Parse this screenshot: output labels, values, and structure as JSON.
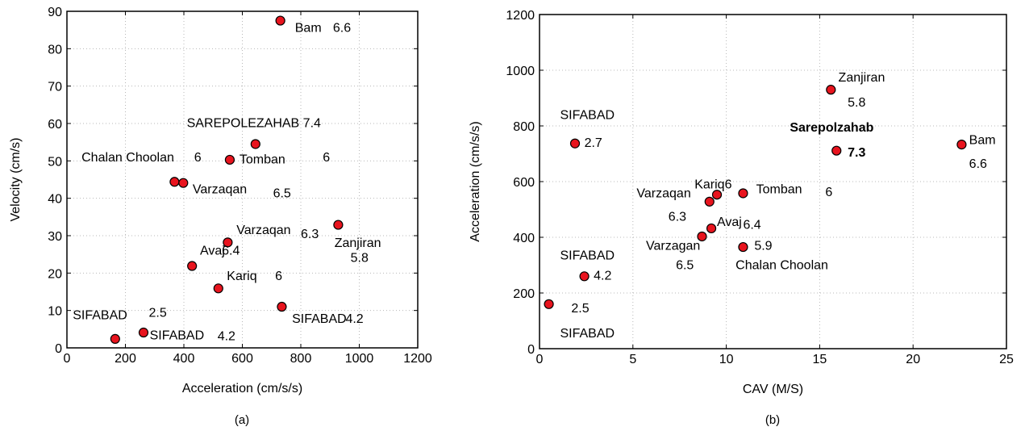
{
  "chart_data": [
    {
      "type": "scatter",
      "caption": "(a)",
      "xlabel": "Acceleration (cm/s/s)",
      "ylabel": "Velocity (cm/s)",
      "xlim": [
        0,
        1200
      ],
      "ylim": [
        0,
        90
      ],
      "xticks": [
        0,
        200,
        400,
        600,
        800,
        1000,
        1200
      ],
      "yticks": [
        0,
        10,
        20,
        30,
        40,
        50,
        60,
        70,
        80,
        90
      ],
      "grid": true,
      "marker_color": "#e8141e",
      "points": [
        {
          "x": 730,
          "y": 87.5
        },
        {
          "x": 645,
          "y": 54.5
        },
        {
          "x": 557,
          "y": 50.3
        },
        {
          "x": 368,
          "y": 44.4
        },
        {
          "x": 398,
          "y": 44.1
        },
        {
          "x": 550,
          "y": 28.2
        },
        {
          "x": 928,
          "y": 32.9
        },
        {
          "x": 428,
          "y": 21.9
        },
        {
          "x": 518,
          "y": 15.9
        },
        {
          "x": 735,
          "y": 11.0
        },
        {
          "x": 165,
          "y": 2.4
        },
        {
          "x": 262,
          "y": 4.1
        }
      ],
      "annotations": [
        {
          "text": "Bam",
          "x": 780,
          "y": 84.5
        },
        {
          "text": "6.6",
          "x": 910,
          "y": 84.5
        },
        {
          "text": "SAREPOLEZAHAB 7.4",
          "x": 410,
          "y": 59.0
        },
        {
          "text": "Chalan Choolan",
          "x": 50,
          "y": 49.9
        },
        {
          "text": "6",
          "x": 435,
          "y": 49.9
        },
        {
          "text": "Tomban",
          "x": 590,
          "y": 49.3
        },
        {
          "text": "6",
          "x": 875,
          "y": 49.9
        },
        {
          "text": "Varzaqan",
          "x": 430,
          "y": 41.3
        },
        {
          "text": "6.5",
          "x": 705,
          "y": 40.3
        },
        {
          "text": "Varzaqan",
          "x": 580,
          "y": 30.4
        },
        {
          "text": "6.3",
          "x": 800,
          "y": 29.4
        },
        {
          "text": "Zanjiran",
          "x": 915,
          "y": 27.0
        },
        {
          "text": "5.8",
          "x": 970,
          "y": 23.0
        },
        {
          "text": "Avaj",
          "x": 455,
          "y": 24.9
        },
        {
          "text": "6.4",
          "x": 530,
          "y": 24.9
        },
        {
          "text": "Kariq",
          "x": 547,
          "y": 18.1
        },
        {
          "text": "6",
          "x": 712,
          "y": 18.1
        },
        {
          "text": "SIFABAD",
          "x": 770,
          "y": 6.7
        },
        {
          "text": "4.2",
          "x": 953,
          "y": 6.7
        },
        {
          "text": "SIFABAD",
          "x": 20,
          "y": 7.7
        },
        {
          "text": "2.5",
          "x": 280,
          "y": 8.3
        },
        {
          "text": "SIFABAD",
          "x": 283,
          "y": 2.3
        },
        {
          "text": "4.2",
          "x": 515,
          "y": 2.0
        }
      ]
    },
    {
      "type": "scatter",
      "caption": "(b)",
      "xlabel": "CAV (M/S)",
      "ylabel": "Acceleration (cm/s/s)",
      "xlim": [
        0,
        25
      ],
      "ylim": [
        0,
        1200
      ],
      "xticks": [
        0,
        5,
        10,
        15,
        20,
        25
      ],
      "yticks": [
        0,
        200,
        400,
        600,
        800,
        1000,
        1200
      ],
      "grid": true,
      "marker_color": "#e8141e",
      "points": [
        {
          "x": 15.6,
          "y": 930
        },
        {
          "x": 22.6,
          "y": 733
        },
        {
          "x": 15.9,
          "y": 711
        },
        {
          "x": 1.9,
          "y": 737
        },
        {
          "x": 10.9,
          "y": 558
        },
        {
          "x": 9.5,
          "y": 553
        },
        {
          "x": 9.1,
          "y": 528
        },
        {
          "x": 9.2,
          "y": 432
        },
        {
          "x": 8.7,
          "y": 403
        },
        {
          "x": 10.9,
          "y": 365
        },
        {
          "x": 2.4,
          "y": 260
        },
        {
          "x": 0.5,
          "y": 160
        }
      ],
      "annotations": [
        {
          "text": "Zanjiran",
          "x": 16.0,
          "y": 960,
          "bold": false
        },
        {
          "text": "5.8",
          "x": 16.5,
          "y": 870,
          "bold": false
        },
        {
          "text": "Bam",
          "x": 23.0,
          "y": 735,
          "bold": false
        },
        {
          "text": "6.6",
          "x": 23.0,
          "y": 650,
          "bold": false
        },
        {
          "text": "Sarepolzahab",
          "x": 13.4,
          "y": 780,
          "bold": true
        },
        {
          "text": "7.3",
          "x": 16.5,
          "y": 690,
          "bold": true
        },
        {
          "text": "SIFABAD",
          "x": 1.1,
          "y": 825,
          "bold": false
        },
        {
          "text": "2.7",
          "x": 2.4,
          "y": 725,
          "bold": false
        },
        {
          "text": "Kariq6",
          "x": 8.3,
          "y": 575,
          "bold": false
        },
        {
          "text": "Tomban",
          "x": 11.6,
          "y": 558,
          "bold": false
        },
        {
          "text": "6",
          "x": 15.3,
          "y": 548,
          "bold": false
        },
        {
          "text": "Varzaqan",
          "x": 5.2,
          "y": 543,
          "bold": false
        },
        {
          "text": "6.3",
          "x": 6.9,
          "y": 460,
          "bold": false
        },
        {
          "text": "Avaj",
          "x": 9.5,
          "y": 440,
          "bold": false
        },
        {
          "text": "6.4",
          "x": 10.9,
          "y": 430,
          "bold": false
        },
        {
          "text": "Varzagan",
          "x": 5.7,
          "y": 355,
          "bold": false
        },
        {
          "text": "6.5",
          "x": 7.3,
          "y": 285,
          "bold": false
        },
        {
          "text": "5.9",
          "x": 11.5,
          "y": 355,
          "bold": false
        },
        {
          "text": "Chalan Choolan",
          "x": 10.5,
          "y": 285,
          "bold": false
        },
        {
          "text": "SIFABAD",
          "x": 1.1,
          "y": 320,
          "bold": false
        },
        {
          "text": "4.2",
          "x": 2.9,
          "y": 248,
          "bold": false
        },
        {
          "text": "2.5",
          "x": 1.7,
          "y": 130,
          "bold": false
        },
        {
          "text": "SIFABAD",
          "x": 1.1,
          "y": 40,
          "bold": false
        }
      ]
    }
  ]
}
